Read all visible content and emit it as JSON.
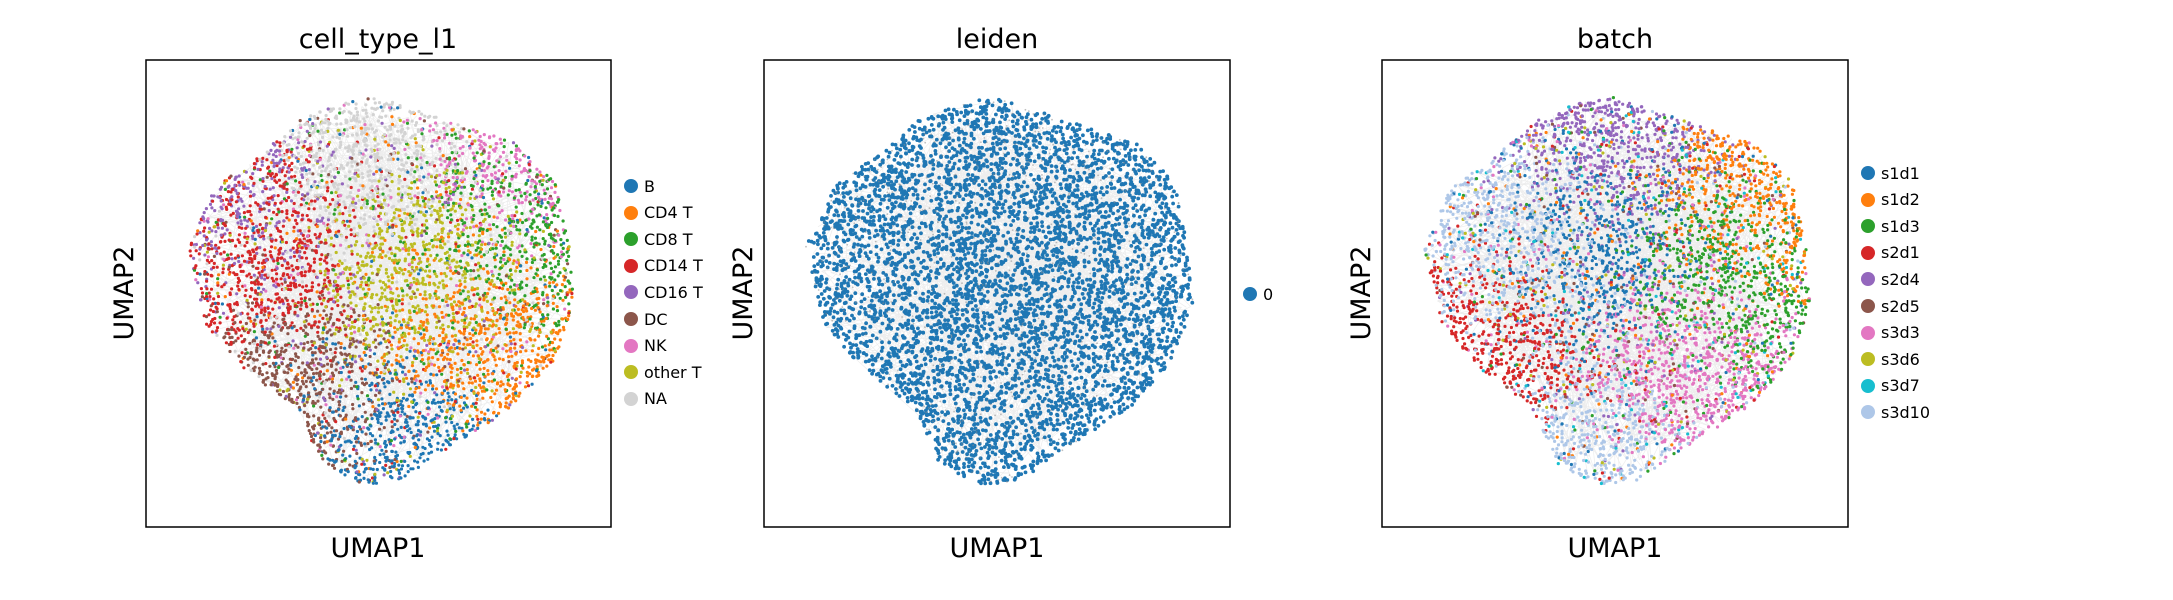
{
  "chart_data": [
    {
      "type": "scatter",
      "title": "cell_type_l1",
      "xlabel": "UMAP1",
      "ylabel": "UMAP2",
      "grid": false,
      "legend_position": "right",
      "categories": [
        "B",
        "CD4 T",
        "CD8 T",
        "CD14 T",
        "CD16 T",
        "DC",
        "NK",
        "other T",
        "NA"
      ],
      "colors": [
        "#1f77b4",
        "#ff7f0e",
        "#2ca02c",
        "#d62728",
        "#9467bd",
        "#8c564b",
        "#e377c2",
        "#bcbd22",
        "#d3d3d3"
      ],
      "regions": [
        {
          "category": "CD14 T",
          "x": 0.22,
          "y": 0.62
        },
        {
          "category": "CD16 T",
          "x": 0.15,
          "y": 0.72
        },
        {
          "category": "NA",
          "x": 0.48,
          "y": 0.82
        },
        {
          "category": "CD4 T",
          "x": 0.72,
          "y": 0.45
        },
        {
          "category": "CD8 T",
          "x": 0.78,
          "y": 0.62
        },
        {
          "category": "NK",
          "x": 0.82,
          "y": 0.78
        },
        {
          "category": "DC",
          "x": 0.33,
          "y": 0.25
        },
        {
          "category": "B",
          "x": 0.52,
          "y": 0.15
        },
        {
          "category": "other T",
          "x": 0.62,
          "y": 0.55
        }
      ]
    },
    {
      "type": "scatter",
      "title": "leiden",
      "xlabel": "UMAP1",
      "ylabel": "UMAP2",
      "grid": false,
      "legend_position": "right",
      "categories": [
        "0"
      ],
      "colors": [
        "#1f77b4"
      ]
    },
    {
      "type": "scatter",
      "title": "batch",
      "xlabel": "UMAP1",
      "ylabel": "UMAP2",
      "grid": false,
      "legend_position": "right",
      "categories": [
        "s1d1",
        "s1d2",
        "s1d3",
        "s2d1",
        "s2d4",
        "s2d5",
        "s3d3",
        "s3d6",
        "s3d7",
        "s3d10"
      ],
      "colors": [
        "#1f77b4",
        "#ff7f0e",
        "#2ca02c",
        "#d62728",
        "#9467bd",
        "#8c564b",
        "#e377c2",
        "#bcbd22",
        "#17becf",
        "#aec7e8"
      ],
      "regions": [
        {
          "category": "s3d10",
          "x": 0.3,
          "y": 0.6
        },
        {
          "category": "s3d10",
          "x": 0.45,
          "y": 0.15
        },
        {
          "category": "s2d4",
          "x": 0.5,
          "y": 0.82
        },
        {
          "category": "s1d1",
          "x": 0.45,
          "y": 0.6
        },
        {
          "category": "s1d3",
          "x": 0.72,
          "y": 0.55
        },
        {
          "category": "s1d2",
          "x": 0.8,
          "y": 0.7
        },
        {
          "category": "s2d1",
          "x": 0.25,
          "y": 0.4
        },
        {
          "category": "s3d3",
          "x": 0.65,
          "y": 0.35
        }
      ]
    }
  ]
}
